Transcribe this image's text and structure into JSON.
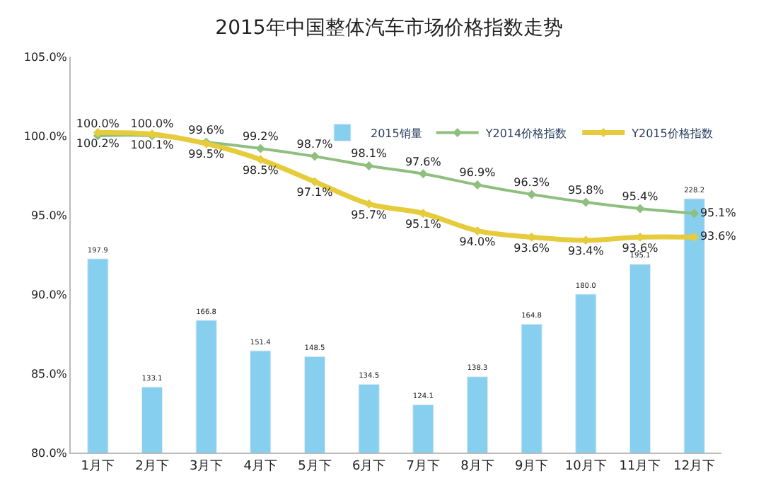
{
  "chart_data": {
    "type": "bar",
    "title": "2015年中国整体汽车市场价格指数走势",
    "categories": [
      "1月下",
      "2月下",
      "3月下",
      "4月下",
      "5月下",
      "6月下",
      "7月下",
      "8月下",
      "9月下",
      "10月下",
      "11月下",
      "12月下"
    ],
    "series": [
      {
        "name": "2015销量",
        "axis": "y2",
        "color": "#87cfee",
        "values": [
          197.9,
          133.1,
          166.8,
          151.4,
          148.5,
          134.5,
          124.1,
          138.3,
          164.8,
          180.0,
          195.1,
          228.2
        ],
        "value_labels": [
          "197.9",
          "133.1",
          "166.8",
          "151.4",
          "148.5",
          "134.5",
          "124.1",
          "138.3",
          "164.8",
          "180.0",
          "195.1",
          "228.2"
        ]
      },
      {
        "name": "Y2014价格指数",
        "type": "line",
        "color": "#8fbf7f",
        "marker": "diamond",
        "values": [
          100.0,
          100.0,
          99.6,
          99.2,
          98.7,
          98.1,
          97.6,
          96.9,
          96.3,
          95.8,
          95.4,
          95.1
        ],
        "value_labels": [
          "100.0%",
          "100.0%",
          "99.6%",
          "99.2%",
          "98.7%",
          "98.1%",
          "97.6%",
          "96.9%",
          "96.3%",
          "95.8%",
          "95.4%",
          "95.1%"
        ]
      },
      {
        "name": "Y2015价格指数",
        "type": "line",
        "color": "#e6cc3c",
        "marker": "diamond",
        "values": [
          100.2,
          100.1,
          99.5,
          98.5,
          97.1,
          95.7,
          95.1,
          94.0,
          93.6,
          93.4,
          93.6,
          93.6
        ],
        "value_labels": [
          "100.2%",
          "100.1%",
          "99.5%",
          "98.5%",
          "97.1%",
          "95.7%",
          "95.1%",
          "94.0%",
          "93.6%",
          "93.4%",
          "93.6%",
          "93.6%"
        ]
      }
    ],
    "ylim": [
      80,
      105
    ],
    "yticks": [
      {
        "value": 80,
        "label": "80.0%"
      },
      {
        "value": 85,
        "label": "85.0%"
      },
      {
        "value": 90,
        "label": "90.0%"
      },
      {
        "value": 95,
        "label": "95.0%"
      },
      {
        "value": 100,
        "label": "100.0%"
      },
      {
        "value": 105,
        "label": "105.0%"
      }
    ],
    "y2lim": [
      100,
      300
    ],
    "tick_labels": "xy",
    "legend": "top right"
  }
}
